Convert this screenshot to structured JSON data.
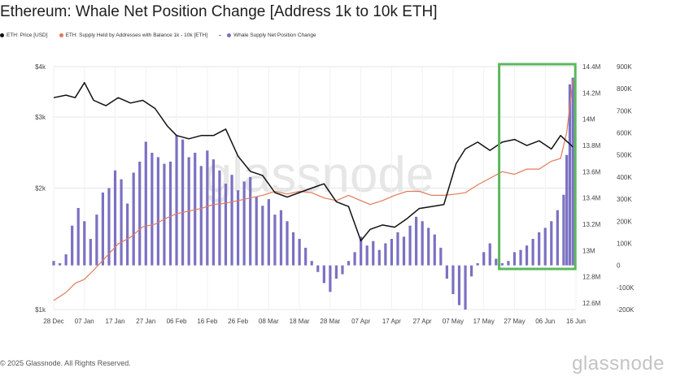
{
  "title": "Ethereum: Whale Net Position Change [Address 1k to 10k ETH]",
  "legend": [
    {
      "label": "ETH: Price [USD]",
      "color": "#111111"
    },
    {
      "label": "ETH: Supply Held by Addresses with Balance 1k - 10k [ETH]",
      "color": "#e07b5a"
    },
    {
      "label": "Whale Supply Net Position Change",
      "color": "#7b71c2"
    }
  ],
  "footer": "© 2025 Glassnode. All Rights Reserved.",
  "brand": "glassnode",
  "watermark": "glassnode",
  "colors": {
    "price": "#111111",
    "supply": "#e07b5a",
    "bars": "#7b71c2",
    "highlight": "#5cb85c",
    "grid": "#e4e4e4"
  },
  "chart_data": {
    "type": "line",
    "grid": true,
    "highlight": {
      "from": "2025-05-22",
      "to": "2025-06-15"
    },
    "x_ticks": [
      "28 Dec",
      "07 Jan",
      "17 Jan",
      "27 Jan",
      "06 Feb",
      "16 Feb",
      "26 Feb",
      "08 Mar",
      "18 Mar",
      "28 Mar",
      "07 Apr",
      "17 Apr",
      "27 Apr",
      "07 May",
      "17 May",
      "27 May",
      "06 Jun",
      "16 Jun"
    ],
    "y_left_ticks": [
      "$4k",
      "$3k",
      "$2k",
      "$1k"
    ],
    "y_left_scale": "log",
    "y_left_range": [
      1000,
      4000
    ],
    "y_mid_ticks": [
      "14.4M",
      "14.2M",
      "14M",
      "13.8M",
      "13.6M",
      "13.4M",
      "13.2M",
      "13M",
      "12.8M",
      "12.6M"
    ],
    "y_mid_range": [
      12.55,
      14.4
    ],
    "y_right_ticks": [
      "900K",
      "800K",
      "700K",
      "600K",
      "500K",
      "400K",
      "300K",
      "200K",
      "100K",
      "0",
      "-100K",
      "-200K"
    ],
    "y_right_range": [
      -200,
      900
    ],
    "series": [
      {
        "name": "ETH: Price [USD]",
        "axis": "left",
        "unit": "USD",
        "x": [
          "2024-12-28",
          "2025-01-01",
          "2025-01-04",
          "2025-01-07",
          "2025-01-10",
          "2025-01-14",
          "2025-01-18",
          "2025-01-22",
          "2025-01-26",
          "2025-01-30",
          "2025-02-03",
          "2025-02-06",
          "2025-02-10",
          "2025-02-14",
          "2025-02-18",
          "2025-02-22",
          "2025-02-26",
          "2025-03-02",
          "2025-03-06",
          "2025-03-10",
          "2025-03-14",
          "2025-03-18",
          "2025-03-22",
          "2025-03-26",
          "2025-03-30",
          "2025-04-03",
          "2025-04-07",
          "2025-04-10",
          "2025-04-14",
          "2025-04-18",
          "2025-04-22",
          "2025-04-26",
          "2025-04-30",
          "2025-05-04",
          "2025-05-08",
          "2025-05-11",
          "2025-05-15",
          "2025-05-19",
          "2025-05-23",
          "2025-05-27",
          "2025-05-31",
          "2025-06-04",
          "2025-06-08",
          "2025-06-11",
          "2025-06-15"
        ],
        "values": [
          3350,
          3400,
          3350,
          3650,
          3300,
          3200,
          3350,
          3250,
          3300,
          3150,
          2850,
          2700,
          2650,
          2700,
          2700,
          2800,
          2400,
          2200,
          2150,
          1950,
          1900,
          1950,
          2000,
          2050,
          1850,
          1800,
          1480,
          1580,
          1620,
          1600,
          1680,
          1780,
          1800,
          1820,
          2300,
          2500,
          2600,
          2480,
          2600,
          2640,
          2550,
          2620,
          2500,
          2700,
          2530
        ]
      },
      {
        "name": "ETH: Supply Held by Addresses with Balance 1k - 10k [ETH]",
        "axis": "mid",
        "unit": "ETH (M)",
        "x": [
          "2024-12-28",
          "2025-01-01",
          "2025-01-04",
          "2025-01-07",
          "2025-01-10",
          "2025-01-14",
          "2025-01-18",
          "2025-01-22",
          "2025-01-26",
          "2025-01-30",
          "2025-02-03",
          "2025-02-06",
          "2025-02-10",
          "2025-02-14",
          "2025-02-18",
          "2025-02-22",
          "2025-02-26",
          "2025-03-02",
          "2025-03-06",
          "2025-03-10",
          "2025-03-14",
          "2025-03-18",
          "2025-03-22",
          "2025-03-26",
          "2025-03-30",
          "2025-04-03",
          "2025-04-07",
          "2025-04-10",
          "2025-04-14",
          "2025-04-18",
          "2025-04-22",
          "2025-04-26",
          "2025-04-30",
          "2025-05-04",
          "2025-05-08",
          "2025-05-11",
          "2025-05-15",
          "2025-05-19",
          "2025-05-23",
          "2025-05-27",
          "2025-05-31",
          "2025-06-04",
          "2025-06-08",
          "2025-06-11",
          "2025-06-13",
          "2025-06-15"
        ],
        "values": [
          12.62,
          12.68,
          12.75,
          12.78,
          12.85,
          12.95,
          13.05,
          13.1,
          13.18,
          13.2,
          13.25,
          13.28,
          13.3,
          13.32,
          13.35,
          13.36,
          13.38,
          13.4,
          13.42,
          13.45,
          13.43,
          13.45,
          13.44,
          13.4,
          13.38,
          13.42,
          13.38,
          13.35,
          13.38,
          13.42,
          13.45,
          13.45,
          13.42,
          13.42,
          13.43,
          13.44,
          13.5,
          13.55,
          13.6,
          13.58,
          13.62,
          13.62,
          13.68,
          13.7,
          13.9,
          14.3
        ]
      },
      {
        "name": "Whale Supply Net Position Change",
        "axis": "right",
        "type": "bar",
        "unit": "ETH (K)",
        "x": [
          "2024-12-28",
          "2024-12-30",
          "2025-01-01",
          "2025-01-03",
          "2025-01-05",
          "2025-01-07",
          "2025-01-09",
          "2025-01-11",
          "2025-01-13",
          "2025-01-15",
          "2025-01-17",
          "2025-01-19",
          "2025-01-21",
          "2025-01-23",
          "2025-01-25",
          "2025-01-27",
          "2025-01-29",
          "2025-01-31",
          "2025-02-02",
          "2025-02-04",
          "2025-02-06",
          "2025-02-08",
          "2025-02-10",
          "2025-02-12",
          "2025-02-14",
          "2025-02-16",
          "2025-02-18",
          "2025-02-20",
          "2025-02-22",
          "2025-02-24",
          "2025-02-26",
          "2025-02-28",
          "2025-03-02",
          "2025-03-04",
          "2025-03-06",
          "2025-03-08",
          "2025-03-10",
          "2025-03-12",
          "2025-03-14",
          "2025-03-16",
          "2025-03-18",
          "2025-03-20",
          "2025-03-22",
          "2025-03-24",
          "2025-03-26",
          "2025-03-28",
          "2025-03-30",
          "2025-04-01",
          "2025-04-03",
          "2025-04-05",
          "2025-04-07",
          "2025-04-09",
          "2025-04-11",
          "2025-04-13",
          "2025-04-15",
          "2025-04-17",
          "2025-04-19",
          "2025-04-21",
          "2025-04-23",
          "2025-04-25",
          "2025-04-27",
          "2025-04-29",
          "2025-05-01",
          "2025-05-03",
          "2025-05-05",
          "2025-05-07",
          "2025-05-09",
          "2025-05-11",
          "2025-05-13",
          "2025-05-15",
          "2025-05-17",
          "2025-05-19",
          "2025-05-21",
          "2025-05-23",
          "2025-05-25",
          "2025-05-27",
          "2025-05-29",
          "2025-05-31",
          "2025-06-02",
          "2025-06-04",
          "2025-06-06",
          "2025-06-08",
          "2025-06-10",
          "2025-06-12",
          "2025-06-13",
          "2025-06-14",
          "2025-06-15"
        ],
        "values": [
          20,
          10,
          50,
          180,
          260,
          200,
          120,
          230,
          330,
          350,
          430,
          390,
          280,
          420,
          470,
          560,
          510,
          490,
          460,
          470,
          590,
          570,
          490,
          510,
          450,
          520,
          480,
          430,
          370,
          410,
          340,
          380,
          400,
          310,
          270,
          300,
          230,
          250,
          200,
          150,
          120,
          80,
          20,
          -30,
          -80,
          -120,
          -60,
          -40,
          20,
          60,
          130,
          90,
          110,
          70,
          100,
          120,
          150,
          130,
          180,
          220,
          200,
          170,
          140,
          80,
          -60,
          -130,
          -180,
          -200,
          -50,
          10,
          60,
          100,
          30,
          10,
          20,
          60,
          70,
          90,
          120,
          150,
          170,
          200,
          250,
          320,
          500,
          820,
          850
        ]
      }
    ]
  }
}
